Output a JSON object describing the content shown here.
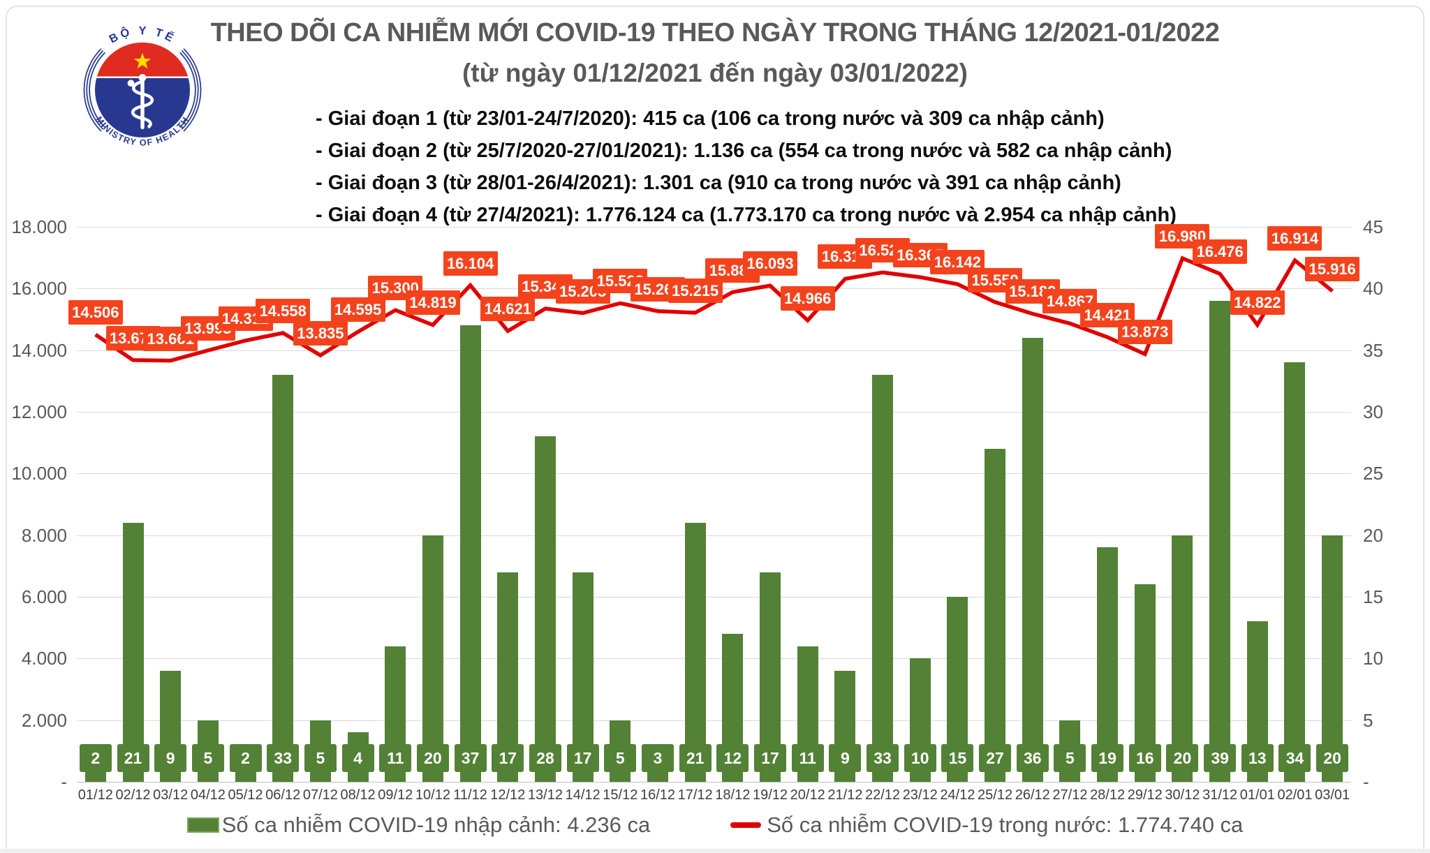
{
  "logo": {
    "top_text": "BỘ Y TẾ",
    "bottom_text": "MINISTRY OF HEALTH",
    "colors": {
      "navy": "#283891",
      "red": "#e02b20",
      "star_yellow": "#ffde00"
    }
  },
  "header": {
    "title_line1": "THEO DÕI CA NHIỄM MỚI COVID-19 THEO NGÀY TRONG THÁNG 12/2021-01/2022",
    "title_line2": "(từ ngày 01/12/2021 đến ngày 03/01/2022)",
    "bullets": [
      "- Giai đoạn 1 (từ 23/01-24/7/2020): 415 ca (106 ca trong nước và 309 ca nhập cảnh)",
      "- Giai đoạn 2 (từ 25/7/2020-27/01/2021): 1.136 ca (554 ca trong nước và 582 ca nhập cảnh)",
      "- Giai đoạn 3 (từ 28/01-26/4/2021): 1.301 ca (910 ca trong nước và 391 ca nhập cảnh)",
      "- Giai đoạn 4 (từ 27/4/2021): 1.776.124 ca (1.773.170 ca trong nước và 2.954 ca nhập cảnh)"
    ]
  },
  "chart_data": {
    "type": "combo-bar-line",
    "title": "THEO DÕI CA NHIỄM MỚI COVID-19 THEO NGÀY TRONG THÁNG 12/2021-01/2022",
    "xlabel": "",
    "ylabel": "",
    "grid": true,
    "legend_position": "bottom",
    "categories": [
      "01/12",
      "02/12",
      "03/12",
      "04/12",
      "05/12",
      "06/12",
      "07/12",
      "08/12",
      "09/12",
      "10/12",
      "11/12",
      "12/12",
      "13/12",
      "14/12",
      "15/12",
      "16/12",
      "17/12",
      "18/12",
      "19/12",
      "20/12",
      "21/12",
      "22/12",
      "23/12",
      "24/12",
      "25/12",
      "26/12",
      "27/12",
      "28/12",
      "29/12",
      "30/12",
      "31/12",
      "01/01",
      "02/01",
      "03/01"
    ],
    "series": [
      {
        "name": "Số ca nhiễm COVID-19 nhập cảnh",
        "type": "bar",
        "axis": "right",
        "color": "#538135",
        "values": [
          2,
          21,
          9,
          5,
          2,
          33,
          5,
          4,
          11,
          20,
          37,
          17,
          28,
          17,
          5,
          3,
          21,
          12,
          17,
          11,
          9,
          33,
          10,
          15,
          27,
          36,
          5,
          19,
          16,
          20,
          39,
          13,
          34,
          20
        ]
      },
      {
        "name": "Số ca nhiễm COVID-19 trong nước",
        "type": "line",
        "axis": "left",
        "color": "#e00000",
        "label_bg": "#f4431c",
        "values": [
          14506,
          13677,
          13661,
          13993,
          14312,
          14558,
          13835,
          14595,
          15300,
          14819,
          16104,
          14621,
          15349,
          15203,
          15522,
          15267,
          15215,
          15883,
          16093,
          14966,
          16316,
          16522,
          16367,
          16142,
          15559,
          15182,
          14867,
          14421,
          13873,
          16980,
          16476,
          14822,
          16914,
          15916
        ],
        "value_labels": [
          "14.506",
          "13.677",
          "13.661",
          "13.993",
          "14.312",
          "14.558",
          "13.835",
          "14.595",
          "15.300",
          "14.819",
          "16.104",
          "14.621",
          "15.349",
          "15.203",
          "15.522",
          "15.267",
          "15.215",
          "15.883",
          "16.093",
          "14.966",
          "16.316",
          "16.522",
          "16.367",
          "16.142",
          "15.559",
          "15.182",
          "14.867",
          "14.421",
          "13.873",
          "16.980",
          "16.476",
          "14.822",
          "16.914",
          "15.916"
        ]
      }
    ],
    "left_axis": {
      "min": 0,
      "max": 18000,
      "ticks": [
        "18.000",
        "16.000",
        "14.000",
        "12.000",
        "10.000",
        "8.000",
        "6.000",
        "4.000",
        "2.000",
        "-"
      ]
    },
    "right_axis": {
      "min": 0,
      "max": 45,
      "ticks": [
        "45",
        "40",
        "35",
        "30",
        "25",
        "20",
        "15",
        "10",
        "5",
        "-"
      ]
    }
  },
  "legend": {
    "bar_label": "Số ca nhiễm COVID-19 nhập cảnh: 4.236 ca",
    "line_label": "Số ca nhiễm COVID-19 trong nước: 1.774.740 ca"
  }
}
